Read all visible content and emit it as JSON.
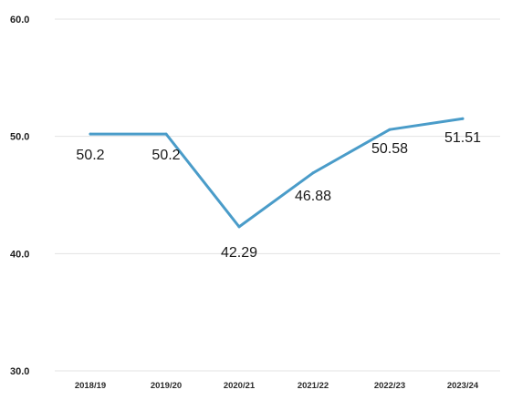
{
  "chart_data": {
    "type": "line",
    "categories": [
      "2018/19",
      "2019/20",
      "2020/21",
      "2021/22",
      "2022/23",
      "2023/24"
    ],
    "series": [
      {
        "values": [
          50.2,
          50.2,
          42.29,
          46.88,
          50.58,
          51.51
        ],
        "labels": [
          "50.2",
          "50.2",
          "42.29",
          "46.88",
          "50.58",
          "51.51"
        ],
        "color": "#4a9cc9"
      }
    ],
    "ylim": [
      30,
      60
    ],
    "yticks": [
      "30.0",
      "40.0",
      "50.0",
      "60.0"
    ],
    "grid": true,
    "gridColor": "#e3e3e3"
  }
}
